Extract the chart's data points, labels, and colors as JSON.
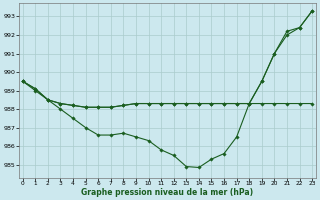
{
  "title": "Graphe pression niveau de la mer (hPa)",
  "background_color": "#cce8ee",
  "grid_color": "#aacccc",
  "line_color": "#1a5e20",
  "x_ticks": [
    0,
    1,
    2,
    3,
    4,
    5,
    6,
    7,
    8,
    9,
    10,
    11,
    12,
    13,
    14,
    15,
    16,
    17,
    18,
    19,
    20,
    21,
    22,
    23
  ],
  "y_ticks": [
    985,
    986,
    987,
    988,
    989,
    990,
    991,
    992,
    993
  ],
  "ylim": [
    984.3,
    993.7
  ],
  "xlim": [
    -0.3,
    23.3
  ],
  "line1": [
    989.5,
    989.0,
    988.5,
    988.0,
    987.5,
    987.0,
    986.6,
    986.6,
    986.7,
    986.5,
    986.3,
    985.8,
    985.5,
    984.9,
    984.85,
    985.3,
    985.6,
    986.5,
    988.3,
    989.5,
    991.0,
    992.0,
    992.4,
    993.3
  ],
  "line2": [
    989.5,
    989.1,
    988.5,
    988.3,
    988.2,
    988.1,
    988.1,
    988.1,
    988.2,
    988.3,
    988.3,
    988.3,
    988.3,
    988.3,
    988.3,
    988.3,
    988.3,
    988.3,
    988.3,
    988.3,
    988.3,
    988.3,
    988.3,
    988.3
  ],
  "line3": [
    989.5,
    989.1,
    988.5,
    988.3,
    988.2,
    988.1,
    988.1,
    988.1,
    988.2,
    988.3,
    988.3,
    988.3,
    988.3,
    988.3,
    988.3,
    988.3,
    988.3,
    988.3,
    988.3,
    989.5,
    991.0,
    992.2,
    992.4,
    993.3
  ]
}
